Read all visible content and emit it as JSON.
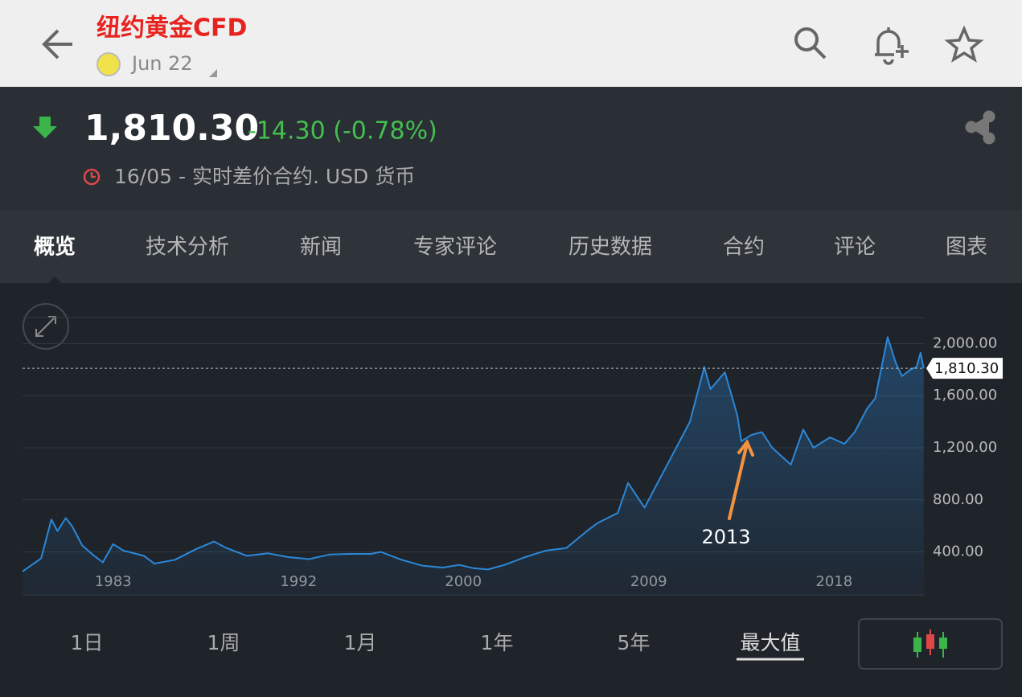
{
  "header": {
    "title": "纽约黄金CFD",
    "date": "Jun 22"
  },
  "quote": {
    "price": "1,810.30",
    "change": "-14.30 (-0.78%)",
    "info": "16/05 - 实时差价合约. USD 货币"
  },
  "tabs": [
    "概览",
    "技术分析",
    "新闻",
    "专家评论",
    "历史数据",
    "合约",
    "评论",
    "图表"
  ],
  "active_tab": 0,
  "chart_data": {
    "type": "line",
    "color": "#2b88d8",
    "fill": true,
    "grid": true,
    "x": [
      1978.6,
      1979.5,
      1980.0,
      1980.3,
      1980.7,
      1981.0,
      1981.5,
      1982.0,
      1982.5,
      1983.0,
      1983.5,
      1984.5,
      1985.0,
      1986.0,
      1987.0,
      1987.9,
      1988.5,
      1989.5,
      1990.5,
      1991.5,
      1992.5,
      1993.5,
      1994.5,
      1995.5,
      1996.0,
      1997.0,
      1998.0,
      1999.0,
      1999.8,
      2000.5,
      2001.2,
      2002.0,
      2003.0,
      2004.0,
      2005.0,
      2006.0,
      2006.5,
      2007.5,
      2008.0,
      2008.8,
      2009.5,
      2010.0,
      2010.5,
      2011.0,
      2011.7,
      2012.0,
      2012.7,
      2013.3,
      2013.5,
      2014.0,
      2014.5,
      2015.0,
      2015.9,
      2016.5,
      2017.0,
      2017.8,
      2018.5,
      2019.0,
      2019.6,
      2020.0,
      2020.6,
      2021.0,
      2021.3,
      2021.7,
      2022.0,
      2022.2,
      2022.35
    ],
    "values": [
      250,
      350,
      650,
      560,
      660,
      600,
      450,
      380,
      320,
      460,
      410,
      370,
      310,
      340,
      420,
      480,
      430,
      370,
      390,
      360,
      345,
      380,
      385,
      385,
      400,
      340,
      295,
      280,
      300,
      275,
      265,
      300,
      360,
      410,
      430,
      560,
      620,
      700,
      930,
      740,
      950,
      1100,
      1250,
      1400,
      1820,
      1650,
      1780,
      1450,
      1250,
      1300,
      1320,
      1200,
      1070,
      1340,
      1200,
      1280,
      1230,
      1320,
      1500,
      1580,
      2050,
      1850,
      1750,
      1800,
      1820,
      1930,
      1810
    ],
    "xlim": [
      1978.6,
      2022.4
    ],
    "ylim": [
      70,
      2200
    ],
    "xticks": [
      1983,
      1992,
      2000,
      2009,
      2018
    ],
    "yticks": [
      {
        "value": 400,
        "label": "400.00"
      },
      {
        "value": 800,
        "label": "800.00"
      },
      {
        "value": 1200,
        "label": "1,200.00"
      },
      {
        "value": 1600,
        "label": "1,600.00"
      },
      {
        "value": 2000,
        "label": "2,000.00"
      }
    ],
    "reference_line": {
      "value": 1810.3,
      "label": "1,810.30"
    },
    "annotation": "2013"
  },
  "ranges": [
    "1日",
    "1周",
    "1月",
    "1年",
    "5年",
    "最大值"
  ],
  "active_range": 5
}
